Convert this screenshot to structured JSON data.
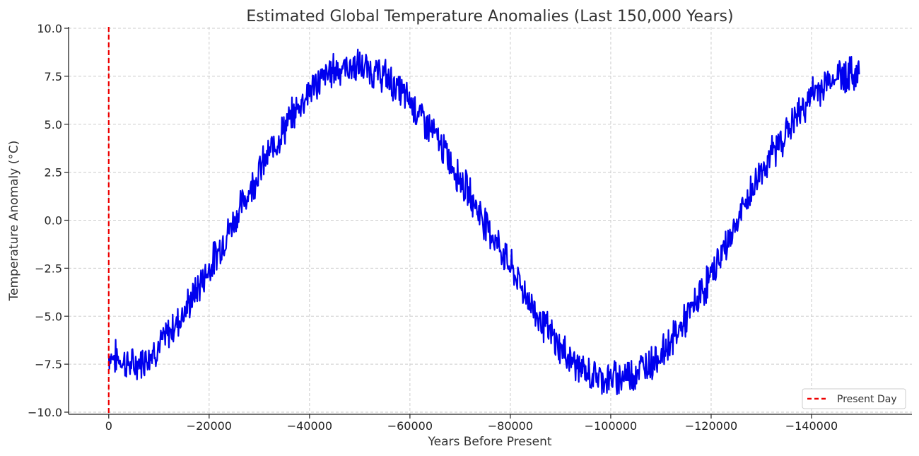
{
  "chart_data": {
    "type": "line",
    "title": "Estimated Global Temperature Anomalies (Last 150,000 Years)",
    "xlabel": "Years Before Present",
    "ylabel": "Temperature Anomaly (°C)",
    "xlim": [
      8000,
      -160000
    ],
    "ylim": [
      -10,
      10
    ],
    "x_ticks": [
      0,
      -20000,
      -40000,
      -60000,
      -80000,
      -100000,
      -120000,
      -140000
    ],
    "x_tick_labels": [
      "0",
      "−20000",
      "−40000",
      "−60000",
      "−80000",
      "−100000",
      "−120000",
      "−140000"
    ],
    "y_ticks": [
      10,
      7.5,
      5,
      2.5,
      0,
      -2.5,
      -5,
      -7.5,
      -10
    ],
    "y_tick_labels": [
      "10.0",
      "7.5",
      "5.0",
      "2.5",
      "0.0",
      "−2.5",
      "−5.0",
      "−7.5",
      "−10.0"
    ],
    "grid": true,
    "series": [
      {
        "color": "#0000ee",
        "style": "solid",
        "x": [
          0,
          -5000,
          -10000,
          -15000,
          -20000,
          -25000,
          -30000,
          -35000,
          -40000,
          -45000,
          -50000,
          -55000,
          -60000,
          -65000,
          -70000,
          -75000,
          -80000,
          -85000,
          -90000,
          -95000,
          -100000,
          -105000,
          -110000,
          -115000,
          -120000,
          -125000,
          -130000,
          -135000,
          -140000,
          -145000,
          -149500
        ],
        "values": [
          -7.0,
          -7.6,
          -6.6,
          -4.8,
          -2.5,
          0.0,
          2.6,
          4.8,
          6.8,
          7.9,
          8.0,
          7.5,
          6.2,
          4.4,
          2.2,
          -0.1,
          -2.4,
          -4.8,
          -6.7,
          -8.0,
          -8.3,
          -7.9,
          -7.0,
          -5.2,
          -2.9,
          -0.2,
          2.6,
          4.6,
          6.5,
          7.6,
          7.6
        ]
      },
      {
        "name": "Present Day",
        "color": "#ee0000",
        "style": "dashed",
        "vertical_line_x": 0
      }
    ],
    "legend": {
      "position": "bottom-right",
      "entries": [
        "Present Day"
      ]
    }
  }
}
